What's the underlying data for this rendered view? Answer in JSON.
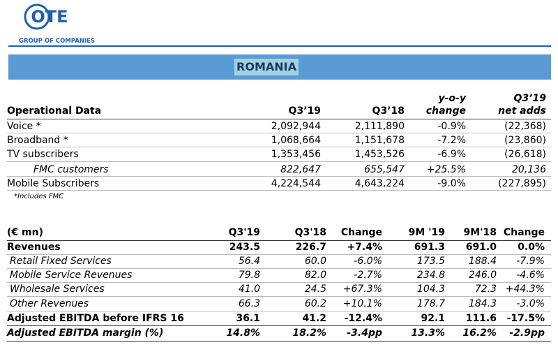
{
  "header": {
    "logo": "OTE",
    "tagline": "GROUP OF COMPANIES"
  },
  "banner": "ROMANIA",
  "operational": {
    "columns": [
      "Operational Data",
      "Q3’19",
      "Q3’18",
      [
        "y-o-y",
        "change"
      ],
      [
        "Q3’19",
        "net adds"
      ]
    ],
    "rows": [
      [
        "Voice *",
        "2,092,944",
        "2,111,890",
        "-0.9%",
        "(22,368)"
      ],
      [
        "Broadband *",
        "1,068,664",
        "1,151,678",
        "-7.2%",
        "(23,860)"
      ],
      [
        "TV subscribers",
        "1,353,456",
        "1,453,526",
        "-6.9%",
        "(26,618)"
      ],
      [
        "FMC customers",
        "822,647",
        "655,547",
        "+25.5%",
        "20,136"
      ],
      [
        "Mobile Subscribers",
        "4,224,544",
        "4,643,224",
        "-9.0%",
        "(227,895)"
      ]
    ],
    "footnote": "*Includes FMC"
  },
  "financial": {
    "columns": [
      "(€ mn)",
      "Q3'19",
      "Q3'18",
      "Change",
      "9M '19",
      "9M'18",
      "Change"
    ],
    "rows": [
      [
        "Revenues",
        "243.5",
        "226.7",
        "+7.4%",
        "691.3",
        "691.0",
        "0.0%"
      ],
      [
        "Retail Fixed Services",
        "56.4",
        "60.0",
        "-6.0%",
        "173.5",
        "188.4",
        "-7.9%"
      ],
      [
        "Mobile Service Revenues",
        "79.8",
        "82.0",
        "-2.7%",
        "234.8",
        "246.0",
        "-4.6%"
      ],
      [
        "Wholesale Services",
        "41.0",
        "24.5",
        "+67.3%",
        "104.3",
        "72.3",
        "+44.3%"
      ],
      [
        "Other Revenues",
        "66.3",
        "60.2",
        "+10.1%",
        "178.7",
        "184.3",
        "-3.0%"
      ],
      [
        "Adjusted EBITDA before IFRS 16",
        "36.1",
        "41.2",
        "-12.4%",
        "92.1",
        "111.6",
        "-17.5%"
      ],
      [
        "Adjusted EBITDA margin (%)",
        "14.8%",
        "18.2%",
        "-3.4pp",
        "13.3%",
        "16.2%",
        "-2.9pp"
      ]
    ]
  }
}
